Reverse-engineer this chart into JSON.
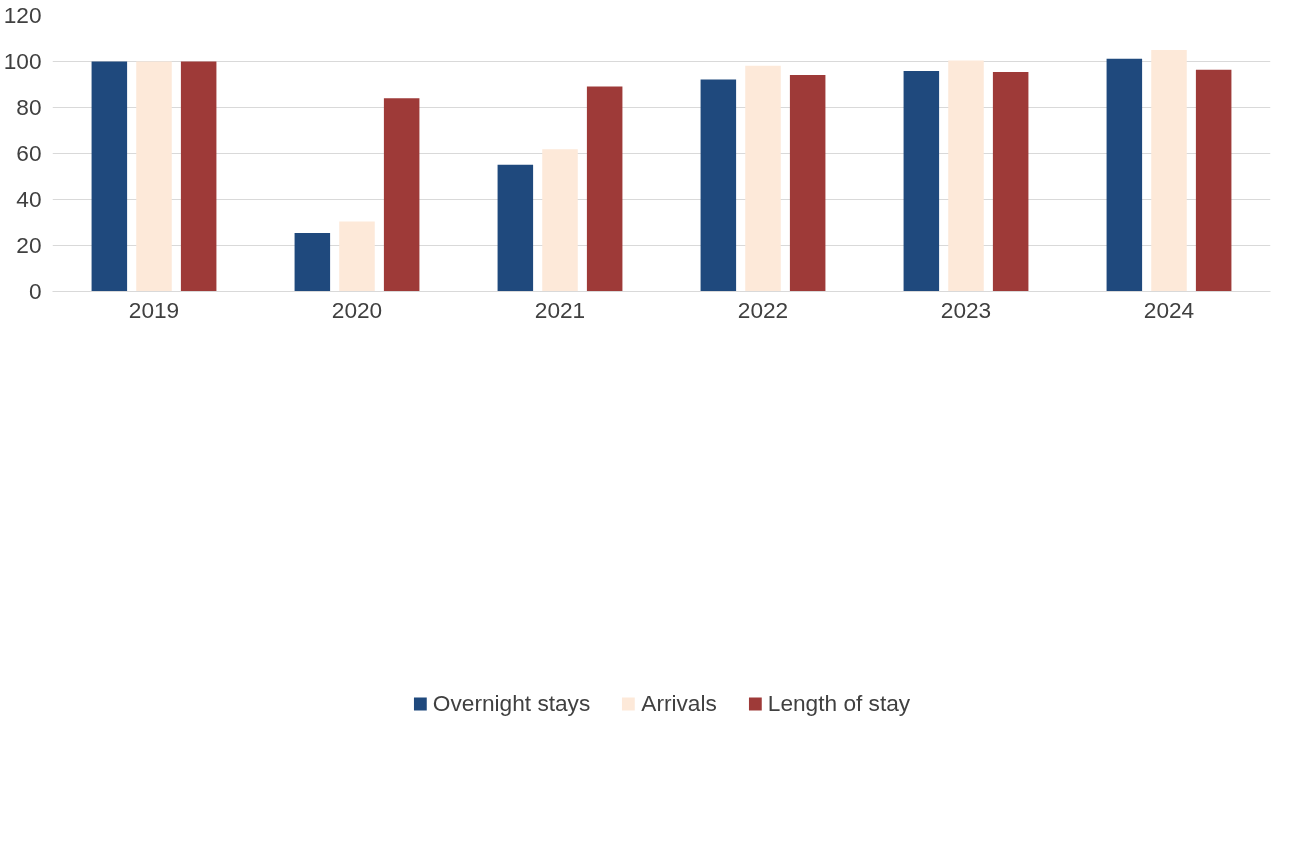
{
  "chart_data": {
    "type": "bar",
    "categories": [
      "2019",
      "2020",
      "2021",
      "2022",
      "2023",
      "2024"
    ],
    "series": [
      {
        "name": "Overnight stays",
        "color": "#1f497d",
        "values": [
          100,
          25.4,
          55.1,
          92.2,
          95.9,
          101.2
        ]
      },
      {
        "name": "Arrivals",
        "color": "#fde9d9",
        "values": [
          100,
          30.4,
          61.8,
          98.2,
          100.4,
          105.0
        ]
      },
      {
        "name": "Length of stay",
        "color": "#9e3a38",
        "values": [
          100,
          84.0,
          89.1,
          94.1,
          95.4,
          96.4
        ]
      }
    ],
    "ylim": [
      0,
      120
    ],
    "yticks": [
      0,
      20,
      40,
      60,
      80,
      100,
      120
    ],
    "grid": "y",
    "legend": "bottom"
  }
}
